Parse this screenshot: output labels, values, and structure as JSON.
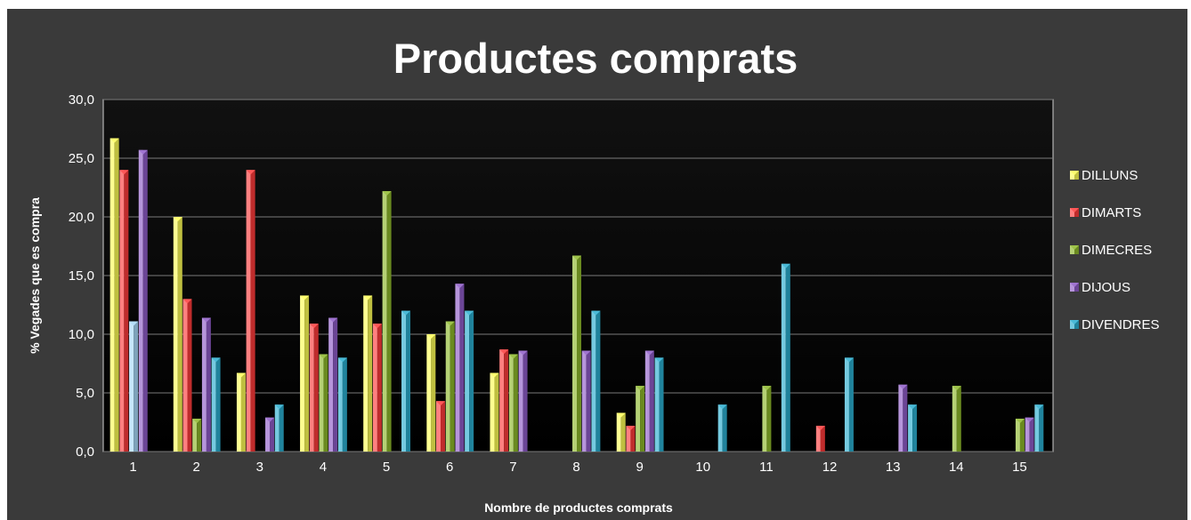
{
  "chart_data": {
    "type": "bar",
    "title": "Productes comprats",
    "xlabel": "Nombre de productes comprats",
    "ylabel": "% Vegades que es compra",
    "ylim": [
      0,
      30
    ],
    "yticks": [
      "0,0",
      "5,0",
      "10,0",
      "15,0",
      "20,0",
      "25,0",
      "30,0"
    ],
    "categories": [
      "1",
      "2",
      "3",
      "4",
      "5",
      "6",
      "7",
      "8",
      "9",
      "10",
      "11",
      "12",
      "13",
      "14",
      "15"
    ],
    "grid": true,
    "legend_position": "right",
    "series": [
      {
        "name": "DILLUNS",
        "color": "#ffff55",
        "values": [
          26.7,
          20.0,
          6.7,
          13.3,
          13.3,
          10.0,
          6.7,
          0,
          3.3,
          0,
          0,
          0,
          0,
          0,
          0
        ]
      },
      {
        "name": "DIMARTS",
        "color": "#ff3b3b",
        "values": [
          24.0,
          13.0,
          24.0,
          10.9,
          10.9,
          4.3,
          8.7,
          0,
          2.2,
          0,
          0,
          2.2,
          0,
          0,
          0
        ]
      },
      {
        "name": "DIMECRES",
        "color": "#8db82a",
        "values": [
          11.1,
          2.8,
          0,
          8.3,
          22.2,
          11.1,
          8.3,
          16.7,
          5.6,
          0,
          5.6,
          0,
          0,
          5.6,
          2.8
        ]
      },
      {
        "name": "DIJOUS",
        "color": "#8e5cc8",
        "values": [
          25.7,
          11.4,
          2.9,
          11.4,
          0,
          14.3,
          8.6,
          8.6,
          8.6,
          0,
          0,
          0,
          5.7,
          0,
          2.9
        ]
      },
      {
        "name": "DIVENDRES",
        "color": "#2aaed0",
        "values": [
          0,
          8.0,
          4.0,
          8.0,
          12.0,
          12.0,
          0,
          12.0,
          8.0,
          4.0,
          16.0,
          8.0,
          4.0,
          0,
          4.0
        ]
      }
    ]
  }
}
